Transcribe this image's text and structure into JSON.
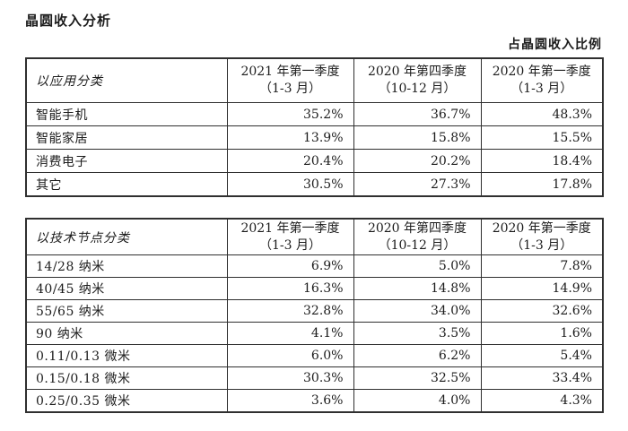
{
  "page": {
    "title": "晶圆收入分析",
    "note": "占晶圆收入比例"
  },
  "columns": [
    {
      "line1": "2021 年第一季度",
      "line2": "（1-3 月）"
    },
    {
      "line1": "2020 年第四季度",
      "line2": "（10-12 月）"
    },
    {
      "line1": "2020 年第一季度",
      "line2": "（1-3 月）"
    }
  ],
  "tables": [
    {
      "category_header": "以应用分类",
      "rows": [
        {
          "label": "智能手机",
          "values": [
            "35.2%",
            "36.7%",
            "48.3%"
          ]
        },
        {
          "label": "智能家居",
          "values": [
            "13.9%",
            "15.8%",
            "15.5%"
          ]
        },
        {
          "label": "消费电子",
          "values": [
            "20.4%",
            "20.2%",
            "18.4%"
          ]
        },
        {
          "label": "其它",
          "values": [
            "30.5%",
            "27.3%",
            "17.8%"
          ]
        }
      ]
    },
    {
      "category_header": "以技术节点分类",
      "rows": [
        {
          "label": "14/28 纳米",
          "values": [
            "6.9%",
            "5.0%",
            "7.8%"
          ]
        },
        {
          "label": "40/45 纳米",
          "values": [
            "16.3%",
            "14.8%",
            "14.9%"
          ]
        },
        {
          "label": "55/65 纳米",
          "values": [
            "32.8%",
            "34.0%",
            "32.6%"
          ]
        },
        {
          "label": "90 纳米",
          "values": [
            "4.1%",
            "3.5%",
            "1.6%"
          ]
        },
        {
          "label": "0.11/0.13 微米",
          "values": [
            "6.0%",
            "6.2%",
            "5.4%"
          ]
        },
        {
          "label": "0.15/0.18 微米",
          "values": [
            "30.3%",
            "32.5%",
            "33.4%"
          ]
        },
        {
          "label": "0.25/0.35 微米",
          "values": [
            "3.6%",
            "4.0%",
            "4.3%"
          ]
        }
      ]
    }
  ]
}
